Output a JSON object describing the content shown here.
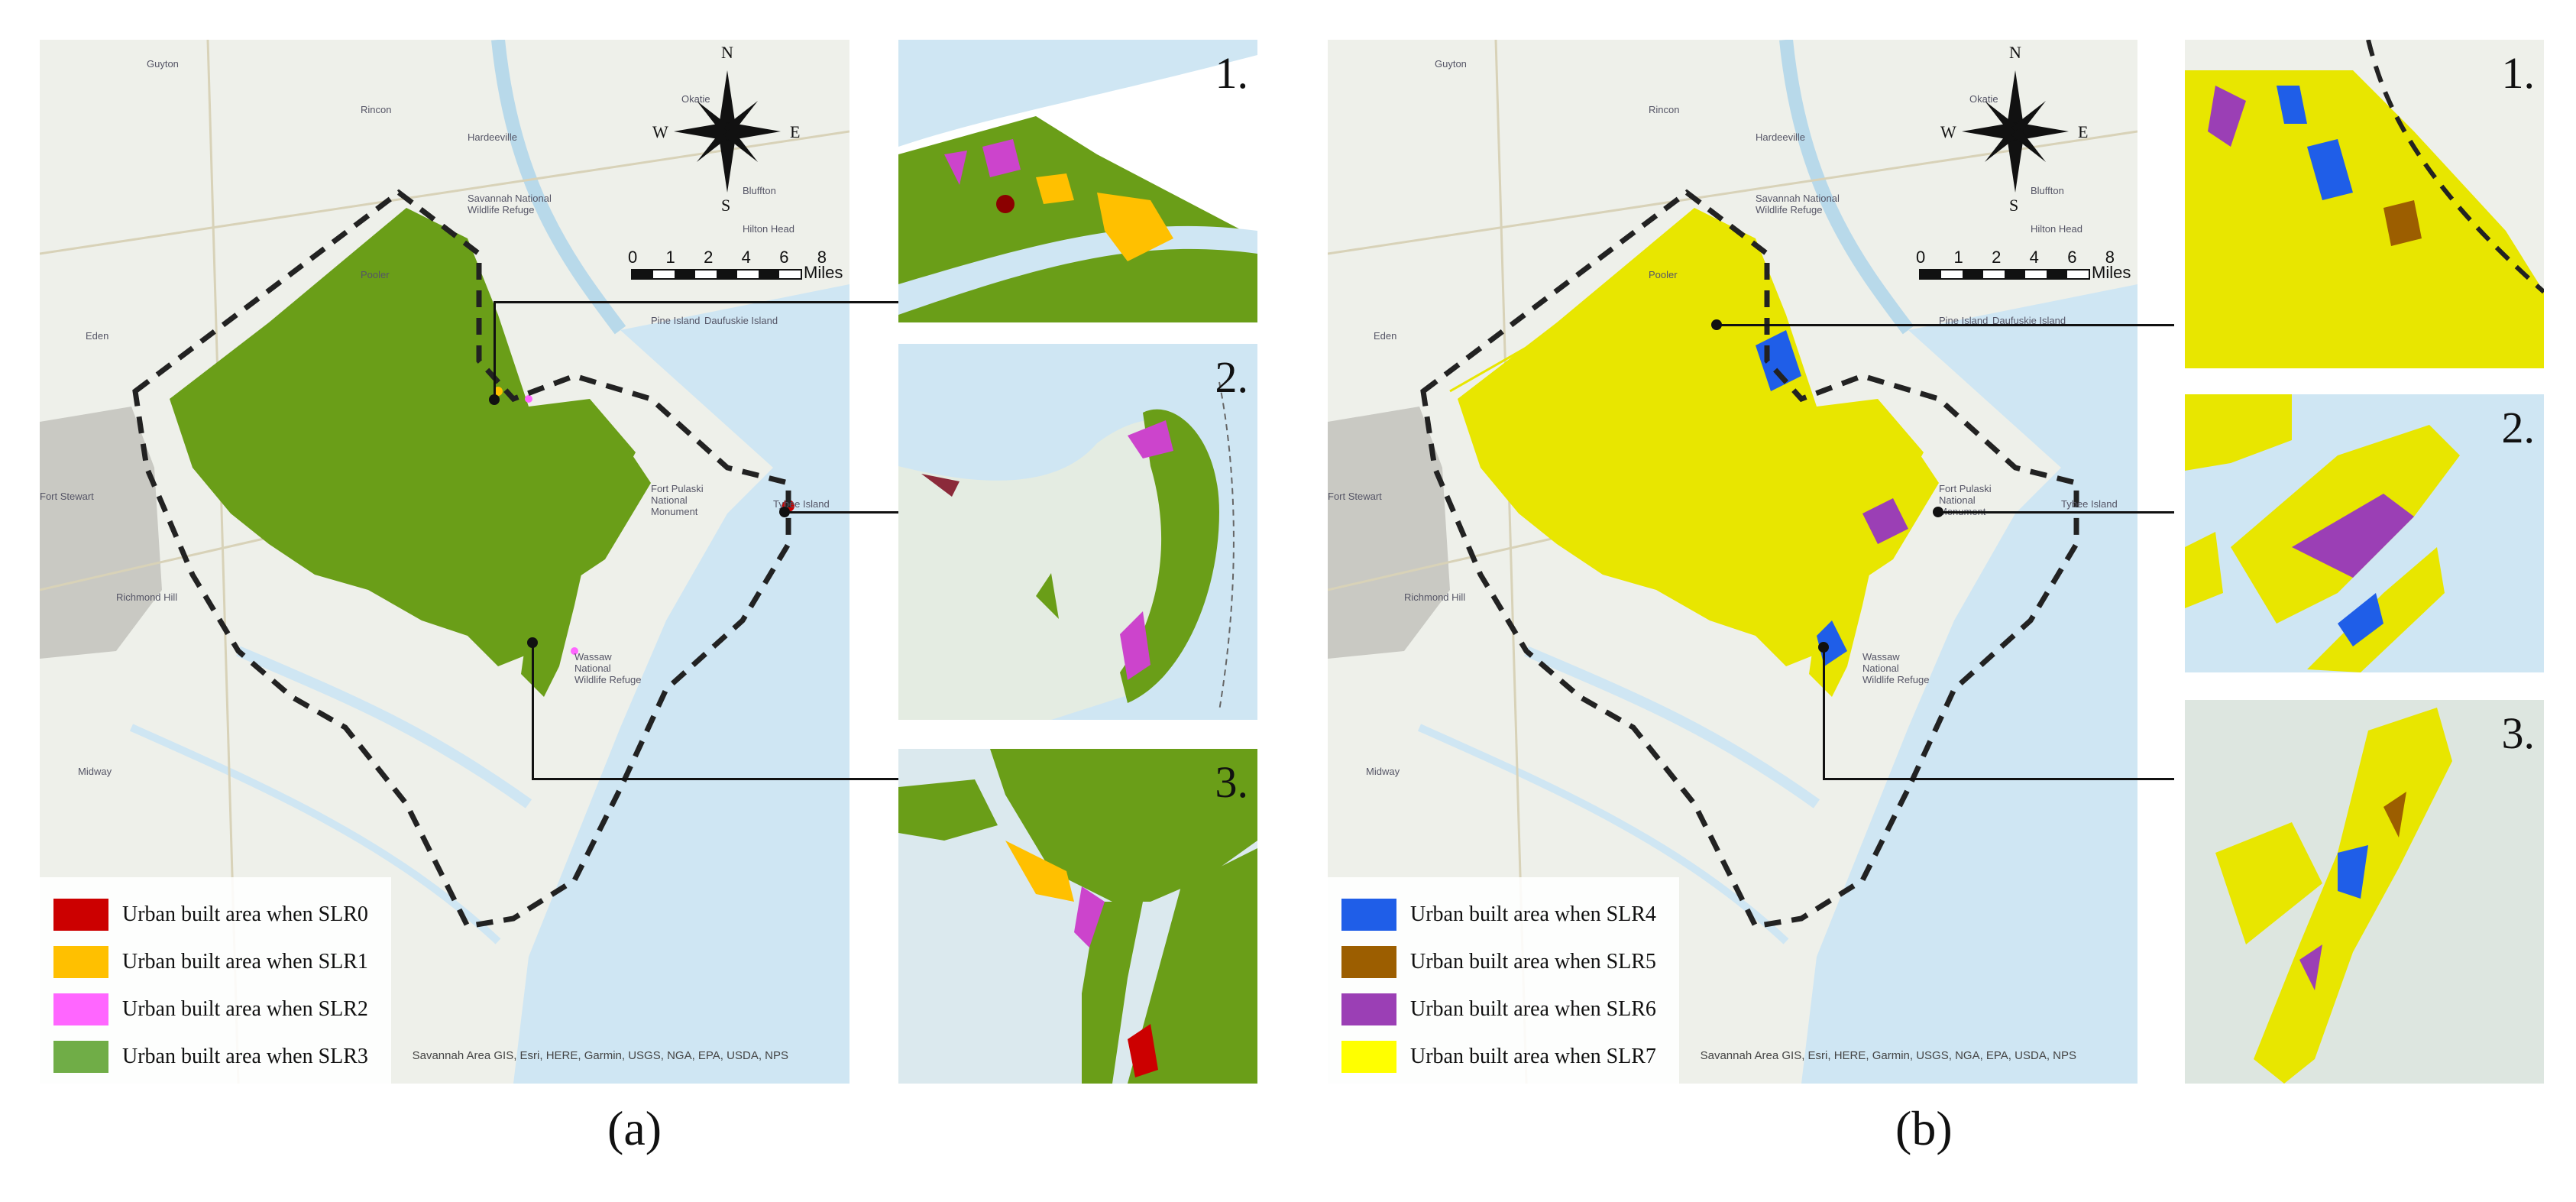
{
  "panels": [
    {
      "id": "a",
      "caption": "(a)",
      "compass": {
        "n": "N",
        "s": "S",
        "e": "E",
        "w": "W"
      },
      "scale": {
        "ticks": [
          "0",
          "1",
          "2",
          "4",
          "6",
          "8"
        ],
        "unit": "Miles"
      },
      "attribution": "Savannah Area GIS, Esri, HERE, Garmin, USGS, NGA, EPA, USDA, NPS",
      "places": [
        "Guyton",
        "Rincon",
        "Okatie",
        "Hardeeville",
        "Pooler",
        "Eden",
        "Fort Stewart",
        "Richmond Hill",
        "Midway",
        "Bluffton",
        "Hilton Head",
        "Daufuskie Island",
        "Pine Island",
        "Wassaw National Wildlife Refuge",
        "Fort Pulaski National Monument",
        "Tybee Island",
        "Savannah National Wildlife Refuge"
      ],
      "legend": [
        {
          "label": "Urban built area when SLR0",
          "color": "#cc0000"
        },
        {
          "label": "Urban built area when SLR1",
          "color": "#ffc000"
        },
        {
          "label": "Urban built area when SLR2",
          "color": "#ff66ff"
        },
        {
          "label": "Urban built area when SLR3",
          "color": "#70ad47"
        }
      ],
      "insets": [
        "1.",
        "2.",
        "3."
      ]
    },
    {
      "id": "b",
      "caption": "(b)",
      "compass": {
        "n": "N",
        "s": "S",
        "e": "E",
        "w": "W"
      },
      "scale": {
        "ticks": [
          "0",
          "1",
          "2",
          "4",
          "6",
          "8"
        ],
        "unit": "Miles"
      },
      "attribution": "Savannah Area GIS, Esri, HERE, Garmin, USGS, NGA, EPA, USDA, NPS",
      "places": [
        "Guyton",
        "Rincon",
        "Okatie",
        "Hardeeville",
        "Pooler",
        "Eden",
        "Fort Stewart",
        "Richmond Hill",
        "Midway",
        "Bluffton",
        "Hilton Head",
        "Daufuskie Island",
        "Pine Island",
        "Wassaw National Wildlife Refuge",
        "Fort Pulaski National Monument",
        "Tybee Island",
        "Savannah National Wildlife Refuge"
      ],
      "legend": [
        {
          "label": "Urban built area when SLR4",
          "color": "#1f5ee8"
        },
        {
          "label": "Urban built area when SLR5",
          "color": "#9c5e00"
        },
        {
          "label": "Urban built area when SLR6",
          "color": "#9b3fb5"
        },
        {
          "label": "Urban built area when SLR7",
          "color": "#ffff00"
        }
      ],
      "insets": [
        "1.",
        "2.",
        "3."
      ]
    }
  ],
  "colors": {
    "water": "#cfe6f3",
    "land": "#eef0ea",
    "boundary": "#222222"
  }
}
